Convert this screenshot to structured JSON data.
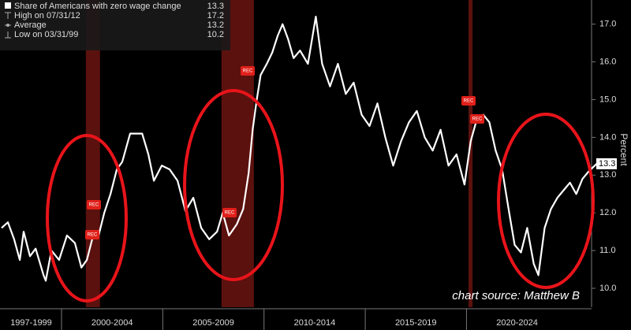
{
  "chart_data": {
    "type": "line",
    "y_label": "Percent",
    "source": "chart source: Matthew B",
    "legend": [
      {
        "label": "High on 07/31/12",
        "value": 17.2
      },
      {
        "label": "Average",
        "value": 13.2
      },
      {
        "label": "Low on 03/31/99",
        "value": 10.2
      }
    ],
    "rec_labels": [
      "REC",
      "REC",
      "REC",
      "REC",
      "REC",
      "REC"
    ],
    "recessions": [
      [
        2001.2,
        2001.9
      ],
      [
        2007.9,
        2009.5
      ],
      [
        2020.1,
        2020.3
      ]
    ],
    "xlim": [
      1997,
      2026.45
    ],
    "xticks": [
      {
        "value": 1997,
        "label": "1997-1999"
      },
      {
        "value": 2000,
        "label": "2000-2004"
      },
      {
        "value": 2005,
        "label": "2005-2009"
      },
      {
        "value": 2010,
        "label": "2010-2014"
      },
      {
        "value": 2015,
        "label": "2015-2019"
      },
      {
        "value": 2020,
        "label": "2020-2024"
      }
    ],
    "ylim": [
      9.5,
      17.64
    ],
    "yticks": [
      {
        "value": 10,
        "label": "10.0"
      },
      {
        "value": 11,
        "label": "11.0"
      },
      {
        "value": 12,
        "label": "12.0"
      },
      {
        "value": 13,
        "label": "13.0"
      },
      {
        "value": 14,
        "label": "14.0"
      },
      {
        "value": 15,
        "label": "15.0"
      },
      {
        "value": 16,
        "label": "16.0"
      },
      {
        "value": 17,
        "label": "17.0"
      }
    ],
    "x": [
      1997.04,
      1997.35,
      1997.66,
      1997.94,
      1998.13,
      1998.44,
      1998.72,
      1999.11,
      1999.22,
      1999.5,
      1999.88,
      2000.27,
      2000.66,
      2000.98,
      2001.25,
      2001.56,
      2001.83,
      2002.11,
      2002.42,
      2002.73,
      2003.0,
      2003.39,
      2003.98,
      2004.29,
      2004.56,
      2004.95,
      2005.34,
      2005.73,
      2006.12,
      2006.51,
      2006.9,
      2007.29,
      2007.68,
      2007.96,
      2008.27,
      2008.66,
      2008.97,
      2009.24,
      2009.44,
      2009.63,
      2009.83,
      2010.14,
      2010.41,
      2010.68,
      2010.92,
      2011.19,
      2011.46,
      2011.78,
      2012.17,
      2012.56,
      2012.87,
      2013.26,
      2013.65,
      2014.04,
      2014.43,
      2014.82,
      2015.21,
      2015.6,
      2015.99,
      2016.38,
      2016.77,
      2017.16,
      2017.55,
      2017.94,
      2018.33,
      2018.72,
      2019.11,
      2019.51,
      2019.9,
      2020.21,
      2020.52,
      2020.83,
      2021.13,
      2021.44,
      2021.76,
      2022.11,
      2022.38,
      2022.69,
      2023.0,
      2023.32,
      2023.55,
      2023.86,
      2024.17,
      2024.49,
      2024.8,
      2025.11,
      2025.42,
      2025.73,
      2026.04,
      2026.43
    ],
    "series": [
      {
        "name": "Share of Americans with zero wage change",
        "color": "#ffffff",
        "last_value": 13.3,
        "values": [
          11.6,
          11.75,
          11.3,
          10.75,
          11.5,
          10.85,
          11.05,
          10.35,
          10.2,
          11.0,
          10.75,
          11.4,
          11.2,
          10.55,
          10.75,
          11.4,
          11.4,
          12.0,
          12.5,
          13.15,
          13.35,
          14.1,
          14.1,
          13.55,
          12.85,
          13.25,
          13.15,
          12.85,
          12.05,
          12.4,
          11.6,
          11.3,
          11.5,
          12.0,
          11.4,
          11.7,
          12.1,
          13.05,
          14.2,
          14.95,
          15.65,
          15.95,
          16.25,
          16.7,
          17.0,
          16.6,
          16.1,
          16.3,
          15.95,
          17.2,
          15.95,
          15.35,
          15.95,
          15.15,
          15.45,
          14.6,
          14.3,
          14.9,
          14.0,
          13.25,
          13.9,
          14.4,
          14.7,
          14.0,
          13.65,
          14.2,
          13.25,
          13.55,
          12.75,
          13.9,
          14.5,
          14.6,
          14.4,
          13.65,
          13.15,
          12.0,
          11.15,
          10.95,
          11.6,
          10.65,
          10.35,
          11.6,
          12.1,
          12.4,
          12.6,
          12.8,
          12.5,
          12.9,
          13.1,
          13.3
        ]
      }
    ]
  }
}
